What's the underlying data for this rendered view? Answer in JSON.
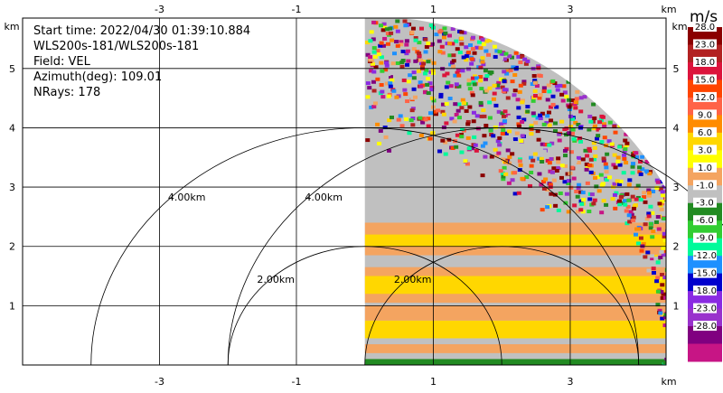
{
  "info": {
    "start_time": "Start time: 2022/04/30 01:39:10.884",
    "instrument": "WLS200s-181/WLS200s-181",
    "field": "Field: VEL",
    "azimuth": "Azimuth(deg): 109.01",
    "nrays": "NRays: 178"
  },
  "axes": {
    "x_unit": "km",
    "y_unit": "km",
    "x_ticks": [
      -3,
      -1,
      1,
      3
    ],
    "y_ticks": [
      1,
      2,
      3,
      4,
      5
    ],
    "xlim": [
      -5.0,
      4.4
    ],
    "ylim": [
      0,
      5.85
    ],
    "grid": true
  },
  "range_rings": [
    {
      "center_x": 0,
      "radius_km": 4.0,
      "label": "4.00km"
    },
    {
      "center_x": 0,
      "radius_km": 2.0,
      "label": "2.00km"
    },
    {
      "center_x": 2.0,
      "radius_km": 2.0,
      "label": "2.00km"
    },
    {
      "center_x": 2.0,
      "radius_km": 4.0,
      "label": "4.00km"
    }
  ],
  "colorbar": {
    "unit": "m/s",
    "labels": [
      "28.0",
      "23.0",
      "18.0",
      "15.0",
      "12.0",
      "9.0",
      "6.0",
      "3.0",
      "1.0",
      "-1.0",
      "-3.0",
      "-6.0",
      "-9.0",
      "-12.0",
      "-15.0",
      "-18.0",
      "-23.0",
      "-28.0"
    ],
    "colors": [
      "#8b0000",
      "#b22222",
      "#dc143c",
      "#ff4500",
      "#ff6347",
      "#ff8c00",
      "#ffd700",
      "#ffff00",
      "#f4a460",
      "#c0c0c0",
      "#228b22",
      "#32cd32",
      "#00fa9a",
      "#1e90ff",
      "#0000cd",
      "#8a2be2",
      "#9932cc",
      "#800080",
      "#c71585"
    ]
  },
  "chart_data": {
    "type": "heatmap",
    "field": "VEL",
    "sector": {
      "x_min": 0.0,
      "y_max": 5.1,
      "outer_radius_km": 5.1
    },
    "bands": [
      {
        "y_from": 0.0,
        "y_to": 0.1,
        "color": "#228b22"
      },
      {
        "y_from": 0.2,
        "y_to": 0.35,
        "color": "#f4a460"
      },
      {
        "y_from": 0.45,
        "y_to": 0.75,
        "color": "#ffd700"
      },
      {
        "y_from": 0.75,
        "y_to": 1.0,
        "color": "#f4a460"
      },
      {
        "y_from": 1.05,
        "y_to": 1.65,
        "color": "#f4a460"
      },
      {
        "y_from": 1.2,
        "y_to": 1.5,
        "color": "#ffd700"
      },
      {
        "y_from": 1.85,
        "y_to": 2.4,
        "color": "#f4a460"
      },
      {
        "y_from": 2.0,
        "y_to": 2.2,
        "color": "#ffd700"
      }
    ]
  }
}
